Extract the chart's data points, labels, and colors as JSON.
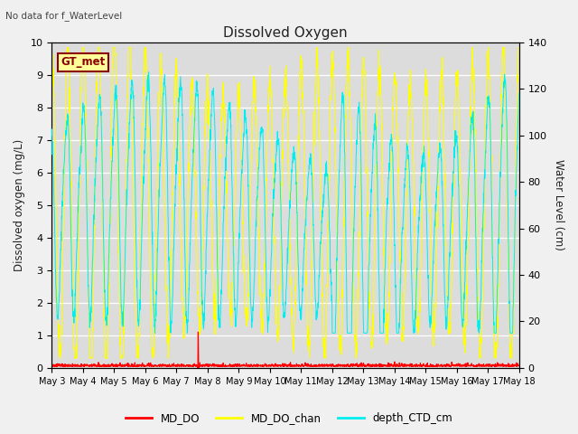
{
  "title": "Dissolved Oxygen",
  "top_note": "No data for f_WaterLevel",
  "annotation": "GT_met",
  "ylabel_left": "Dissolved oxygen (mg/L)",
  "ylabel_right": "Water Level (cm)",
  "ylim_left": [
    0.0,
    10.0
  ],
  "ylim_right": [
    0,
    140
  ],
  "yticks_left": [
    0.0,
    1.0,
    2.0,
    3.0,
    4.0,
    5.0,
    6.0,
    7.0,
    8.0,
    9.0,
    10.0
  ],
  "yticks_right": [
    0,
    20,
    40,
    60,
    80,
    100,
    120,
    140
  ],
  "xticklabels": [
    "May 3",
    "May 4",
    "May 5",
    "May 6",
    "May 7",
    "May 8",
    "May 9",
    "May 10",
    "May 11",
    "May 12",
    "May 13",
    "May 14",
    "May 15",
    "May 16",
    "May 17",
    "May 18"
  ],
  "legend_labels": [
    "MD_DO",
    "MD_DO_chan",
    "depth_CTD_cm"
  ],
  "line_colors": {
    "MD_DO": "#ff0000",
    "MD_DO_chan": "#ffff00",
    "depth_CTD_cm": "#00eeee"
  },
  "background_color": "#dcdcdc",
  "fig_background": "#f0f0f0",
  "grid_color": "#ffffff"
}
